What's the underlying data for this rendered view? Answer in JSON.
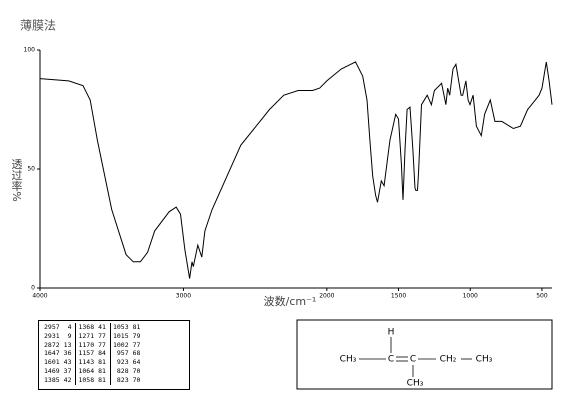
{
  "chart_data": {
    "type": "line",
    "title": "薄膜法",
    "xlabel": "波数/cm⁻¹",
    "ylabel": "透过率%",
    "xlim": [
      4000,
      430
    ],
    "xticks": [
      4000,
      3000,
      2000,
      1500,
      1000,
      500
    ],
    "ylim": [
      0,
      100
    ],
    "yticks": [
      0,
      50,
      100
    ],
    "color": "#000000",
    "x": [
      4000,
      3800,
      3700,
      3650,
      3600,
      3500,
      3400,
      3350,
      3300,
      3250,
      3200,
      3100,
      3050,
      3020,
      2990,
      2957,
      2940,
      2931,
      2900,
      2872,
      2850,
      2800,
      2600,
      2400,
      2300,
      2200,
      2100,
      2050,
      2000,
      1900,
      1800,
      1750,
      1720,
      1700,
      1680,
      1660,
      1647,
      1620,
      1601,
      1560,
      1520,
      1500,
      1480,
      1469,
      1455,
      1440,
      1420,
      1400,
      1385,
      1380,
      1368,
      1360,
      1340,
      1300,
      1271,
      1250,
      1200,
      1170,
      1157,
      1143,
      1120,
      1100,
      1064,
      1058,
      1053,
      1030,
      1015,
      1002,
      980,
      957,
      923,
      900,
      860,
      828,
      823,
      780,
      700,
      650,
      600,
      560,
      520,
      500,
      470,
      450,
      430
    ],
    "values": [
      88,
      87,
      85,
      79,
      62,
      33,
      14,
      11,
      11,
      15,
      24,
      32,
      34,
      31,
      16,
      4,
      11,
      9,
      18,
      13,
      24,
      33,
      60,
      75,
      81,
      83,
      83,
      84,
      87,
      92,
      95,
      89,
      79,
      62,
      47,
      39,
      36,
      45,
      43,
      62,
      73,
      71,
      52,
      37,
      58,
      75,
      76,
      58,
      42,
      41,
      41,
      49,
      77,
      81,
      77,
      83,
      86,
      77,
      84,
      81,
      92,
      94,
      81,
      81,
      81,
      87,
      79,
      77,
      81,
      68,
      64,
      73,
      79,
      70,
      70,
      70,
      67,
      68,
      75,
      78,
      81,
      84,
      95,
      87,
      77
    ]
  },
  "peak_table": {
    "rows": [
      [
        "2957",
        "4",
        "1368",
        "41",
        "1053",
        "81"
      ],
      [
        "2931",
        "9",
        "1271",
        "77",
        "1015",
        "79"
      ],
      [
        "2872",
        "13",
        "1170",
        "77",
        "1002",
        "77"
      ],
      [
        "1647",
        "36",
        "1157",
        "84",
        "957",
        "68"
      ],
      [
        "1601",
        "43",
        "1143",
        "81",
        "923",
        "64"
      ],
      [
        "1469",
        "37",
        "1064",
        "81",
        "828",
        "70"
      ],
      [
        "1385",
        "42",
        "1058",
        "81",
        "823",
        "70"
      ]
    ]
  },
  "structure": {
    "atoms": [
      "H",
      "CH₃",
      "C",
      "C",
      "CH₂",
      "CH₃",
      "CH₃"
    ]
  }
}
